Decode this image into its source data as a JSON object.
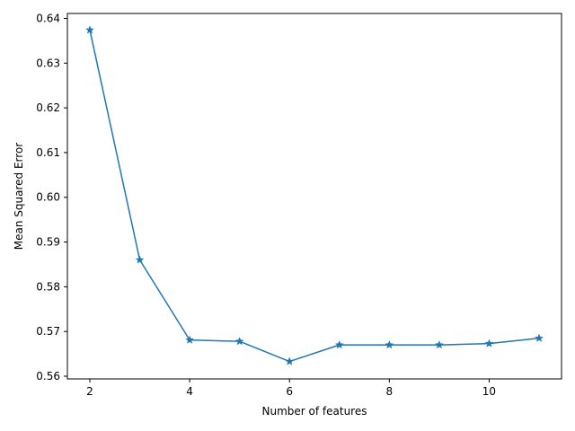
{
  "chart_data": {
    "type": "line",
    "title": "",
    "xlabel": "Number of features",
    "ylabel": "Mean Squared Error",
    "xlim": [
      1.55,
      11.45
    ],
    "ylim": [
      0.5594,
      0.6411
    ],
    "xticks": [
      2,
      4,
      6,
      8,
      10
    ],
    "xtick_labels": [
      "2",
      "4",
      "6",
      "8",
      "10"
    ],
    "yticks": [
      0.56,
      0.57,
      0.58,
      0.59,
      0.6,
      0.61,
      0.62,
      0.63,
      0.64
    ],
    "ytick_labels": [
      "0.56",
      "0.57",
      "0.58",
      "0.59",
      "0.60",
      "0.61",
      "0.62",
      "0.63",
      "0.64"
    ],
    "grid": false,
    "legend": "none",
    "marker": "star",
    "color": "#1f77b4",
    "series": [
      {
        "x": [
          2,
          3,
          4,
          5,
          6,
          7,
          8,
          9,
          10,
          11
        ],
        "values": [
          0.6374,
          0.586,
          0.5681,
          0.5678,
          0.5633,
          0.567,
          0.567,
          0.567,
          0.5673,
          0.5685
        ]
      }
    ]
  }
}
